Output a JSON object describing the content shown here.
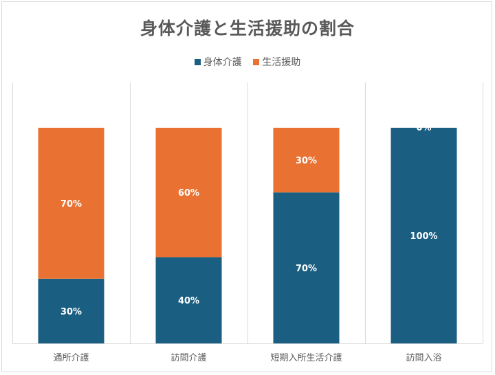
{
  "chart_data": {
    "type": "bar",
    "stacked": true,
    "title": "身体介護と生活援助の割合",
    "categories": [
      "通所介護",
      "訪問介護",
      "短期入所生活介護",
      "訪問入浴"
    ],
    "series": [
      {
        "name": "身体介護",
        "color": "#1a5e82",
        "values": [
          30,
          40,
          70,
          100
        ],
        "labels": [
          "30%",
          "40%",
          "70%",
          "100%"
        ]
      },
      {
        "name": "生活援助",
        "color": "#e97132",
        "values": [
          70,
          60,
          30,
          0
        ],
        "labels": [
          "70%",
          "60%",
          "30%",
          "0%"
        ]
      }
    ],
    "ylim": [
      0,
      100
    ],
    "legend_position": "top",
    "grid": "vertical separators"
  }
}
